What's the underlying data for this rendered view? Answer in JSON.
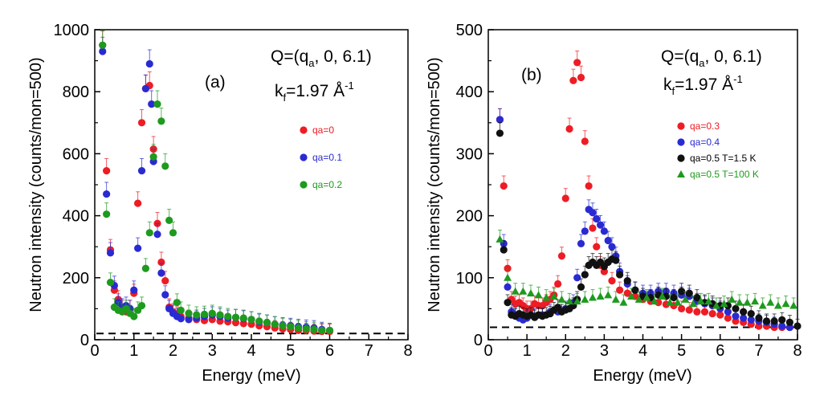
{
  "colors": {
    "red": "#ee1c24",
    "blue": "#2a2ad2",
    "black": "#111111",
    "green": "#1e9a1e",
    "frame": "#000000",
    "baseline": "#000000"
  },
  "chart_data": [
    {
      "type": "scatter",
      "panel_label": "(a)",
      "q_text": {
        "prefix": "Q=(q",
        "sub": "a",
        "suffix": ", 0, 6.1)"
      },
      "k_text": {
        "prefix": "k",
        "sub": "f",
        "mid": "=1.97 Å",
        "sup": "-1"
      },
      "xlabel": "Energy (meV)",
      "ylabel": "Neutron intensity (counts/mon=500)",
      "xlim": [
        0,
        8
      ],
      "ylim": [
        0,
        1000
      ],
      "xticks": [
        "0",
        "1",
        "2",
        "3",
        "4",
        "5",
        "6",
        "7",
        "8"
      ],
      "yticks": [
        "0",
        "200",
        "400",
        "600",
        "800",
        "1000"
      ],
      "baseline": 20,
      "legend_position": "right-middle",
      "series": [
        {
          "name": "qa=0",
          "color": "red",
          "marker": "circle",
          "x": [
            0.2,
            0.3,
            0.4,
            0.5,
            0.6,
            0.7,
            0.8,
            0.9,
            1.0,
            1.1,
            1.2,
            1.3,
            1.4,
            1.5,
            1.6,
            1.7,
            1.8,
            1.9,
            2.0,
            2.1,
            2.2,
            2.4,
            2.6,
            2.8,
            3.0,
            3.2,
            3.4,
            3.6,
            3.8,
            4.0,
            4.2,
            4.4,
            4.6,
            4.8,
            5.0,
            5.2,
            5.4,
            5.6,
            5.8,
            6.0
          ],
          "y": [
            950,
            545,
            290,
            160,
            130,
            100,
            90,
            100,
            150,
            440,
            700,
            810,
            820,
            615,
            375,
            250,
            190,
            105,
            90,
            80,
            75,
            70,
            65,
            62,
            65,
            60,
            58,
            55,
            52,
            50,
            45,
            42,
            38,
            35,
            33,
            30,
            30,
            28,
            27,
            27
          ]
        },
        {
          "name": "qa=0.1",
          "color": "blue",
          "marker": "circle",
          "x": [
            0.2,
            0.3,
            0.4,
            0.5,
            0.6,
            0.7,
            0.8,
            0.9,
            1.0,
            1.1,
            1.2,
            1.3,
            1.4,
            1.45,
            1.5,
            1.6,
            1.7,
            1.8,
            1.9,
            2.0,
            2.1,
            2.2,
            2.4,
            2.6,
            2.8,
            3.0,
            3.2,
            3.4,
            3.6,
            3.8,
            4.0,
            4.2,
            4.4,
            4.6,
            4.8,
            5.0,
            5.2,
            5.4,
            5.6,
            5.8,
            6.0
          ],
          "y": [
            930,
            470,
            280,
            175,
            120,
            105,
            110,
            100,
            160,
            295,
            545,
            810,
            890,
            760,
            575,
            340,
            215,
            145,
            100,
            85,
            75,
            68,
            65,
            70,
            75,
            80,
            75,
            70,
            72,
            68,
            65,
            58,
            55,
            50,
            47,
            45,
            42,
            40,
            38,
            33,
            30
          ]
        },
        {
          "name": "qa=0.2",
          "color": "green",
          "marker": "circle",
          "x": [
            0.2,
            0.3,
            0.4,
            0.5,
            0.6,
            0.7,
            0.8,
            0.9,
            1.0,
            1.1,
            1.2,
            1.3,
            1.4,
            1.5,
            1.6,
            1.7,
            1.8,
            1.9,
            2.0,
            2.1,
            2.2,
            2.4,
            2.6,
            2.8,
            3.0,
            3.2,
            3.4,
            3.6,
            3.8,
            4.0,
            4.2,
            4.4,
            4.6,
            4.8,
            5.0,
            5.2,
            5.4,
            5.6,
            5.8,
            6.0
          ],
          "y": [
            950,
            405,
            185,
            105,
            95,
            90,
            100,
            85,
            75,
            95,
            110,
            230,
            345,
            590,
            760,
            705,
            560,
            385,
            345,
            120,
            95,
            85,
            80,
            82,
            85,
            80,
            75,
            72,
            70,
            65,
            60,
            55,
            50,
            45,
            42,
            38,
            35,
            33,
            30,
            30
          ]
        }
      ]
    },
    {
      "type": "scatter",
      "panel_label": "(b)",
      "q_text": {
        "prefix": "Q=(q",
        "sub": "a",
        "suffix": ", 0, 6.1)"
      },
      "k_text": {
        "prefix": "k",
        "sub": "f",
        "mid": "=1.97 Å",
        "sup": "-1"
      },
      "xlabel": "Energy (meV)",
      "ylabel": "Neutron intensity (counts/mon=500)",
      "xlim": [
        0,
        8
      ],
      "ylim": [
        0,
        500
      ],
      "xticks": [
        "0",
        "1",
        "2",
        "3",
        "4",
        "5",
        "6",
        "7",
        "8"
      ],
      "yticks": [
        "0",
        "100",
        "200",
        "300",
        "400",
        "500"
      ],
      "baseline": 20,
      "legend_position": "right-middle",
      "series": [
        {
          "name": "qa=0.3",
          "color": "red",
          "marker": "circle",
          "x": [
            0.3,
            0.4,
            0.5,
            0.6,
            0.7,
            0.8,
            0.9,
            1.0,
            1.1,
            1.2,
            1.3,
            1.4,
            1.5,
            1.6,
            1.7,
            1.8,
            1.9,
            2.0,
            2.1,
            2.2,
            2.3,
            2.4,
            2.5,
            2.6,
            2.7,
            2.8,
            2.9,
            3.0,
            3.2,
            3.4,
            3.6,
            3.8,
            4.0,
            4.2,
            4.4,
            4.6,
            4.8,
            5.0,
            5.2,
            5.4,
            5.6,
            5.8,
            6.0,
            6.2,
            6.4,
            6.6,
            6.8,
            7.0,
            7.2,
            7.4,
            7.6,
            7.8
          ],
          "y": [
            355,
            248,
            115,
            65,
            58,
            60,
            55,
            50,
            50,
            58,
            55,
            55,
            60,
            65,
            72,
            90,
            135,
            228,
            340,
            418,
            447,
            423,
            320,
            248,
            180,
            150,
            120,
            110,
            95,
            80,
            75,
            70,
            65,
            62,
            60,
            57,
            55,
            50,
            48,
            45,
            45,
            42,
            40,
            35,
            30,
            28,
            25,
            22,
            22,
            20,
            20,
            20
          ]
        },
        {
          "name": "qa=0.4",
          "color": "blue",
          "marker": "circle",
          "x": [
            0.3,
            0.4,
            0.5,
            0.6,
            0.7,
            0.8,
            0.9,
            1.0,
            1.2,
            1.4,
            1.6,
            1.8,
            2.0,
            2.2,
            2.3,
            2.4,
            2.5,
            2.6,
            2.7,
            2.8,
            2.9,
            3.0,
            3.1,
            3.2,
            3.3,
            3.4,
            3.6,
            3.8,
            4.0,
            4.2,
            4.4,
            4.6,
            4.8,
            5.0,
            5.2,
            5.4,
            5.6,
            5.8,
            6.0,
            6.2,
            6.4,
            6.6,
            6.8,
            7.0,
            7.2,
            7.4,
            7.6,
            7.8
          ],
          "y": [
            355,
            155,
            85,
            45,
            40,
            35,
            32,
            35,
            38,
            40,
            45,
            45,
            50,
            60,
            100,
            155,
            175,
            210,
            205,
            195,
            185,
            175,
            160,
            150,
            135,
            110,
            90,
            80,
            75,
            75,
            78,
            78,
            75,
            72,
            70,
            62,
            58,
            55,
            50,
            45,
            38,
            35,
            32,
            30,
            28,
            25,
            22,
            20
          ]
        },
        {
          "name": "qa=0.5  T=1.5 K",
          "color": "black",
          "marker": "circle",
          "x": [
            0.3,
            0.4,
            0.5,
            0.6,
            0.7,
            0.8,
            0.9,
            1.0,
            1.1,
            1.2,
            1.3,
            1.4,
            1.5,
            1.6,
            1.7,
            1.8,
            1.9,
            2.0,
            2.1,
            2.2,
            2.3,
            2.4,
            2.5,
            2.6,
            2.7,
            2.8,
            2.9,
            3.0,
            3.1,
            3.2,
            3.3,
            3.4,
            3.6,
            3.8,
            4.0,
            4.2,
            4.4,
            4.6,
            4.8,
            5.0,
            5.2,
            5.4,
            5.6,
            5.8,
            6.0,
            6.2,
            6.4,
            6.6,
            6.8,
            7.0,
            7.2,
            7.4,
            7.6,
            7.8,
            8.0
          ],
          "y": [
            333,
            145,
            60,
            40,
            38,
            42,
            40,
            38,
            40,
            36,
            40,
            38,
            40,
            42,
            48,
            52,
            45,
            48,
            50,
            55,
            65,
            85,
            105,
            120,
            125,
            120,
            125,
            118,
            125,
            130,
            128,
            105,
            95,
            80,
            70,
            68,
            72,
            70,
            68,
            78,
            75,
            68,
            60,
            58,
            55,
            55,
            50,
            45,
            42,
            35,
            30,
            30,
            32,
            28,
            22
          ]
        },
        {
          "name": "qa=0.5  T=100 K",
          "color": "green",
          "marker": "triangle",
          "x": [
            0.3,
            0.5,
            0.7,
            0.9,
            1.1,
            1.3,
            1.5,
            1.7,
            1.9,
            2.1,
            2.3,
            2.5,
            2.7,
            2.9,
            3.1,
            3.3,
            3.5,
            3.7,
            3.9,
            4.1,
            4.3,
            4.5,
            4.7,
            4.9,
            5.1,
            5.3,
            5.5,
            5.7,
            5.9,
            6.1,
            6.3,
            6.5,
            6.7,
            6.9,
            7.1,
            7.3,
            7.5,
            7.7,
            7.9
          ],
          "y": [
            162,
            100,
            78,
            78,
            75,
            72,
            68,
            70,
            65,
            62,
            62,
            65,
            68,
            70,
            72,
            65,
            60,
            70,
            65,
            68,
            62,
            70,
            60,
            60,
            65,
            58,
            62,
            62,
            55,
            58,
            65,
            60,
            60,
            62,
            55,
            60,
            55,
            58,
            55
          ]
        }
      ]
    }
  ]
}
